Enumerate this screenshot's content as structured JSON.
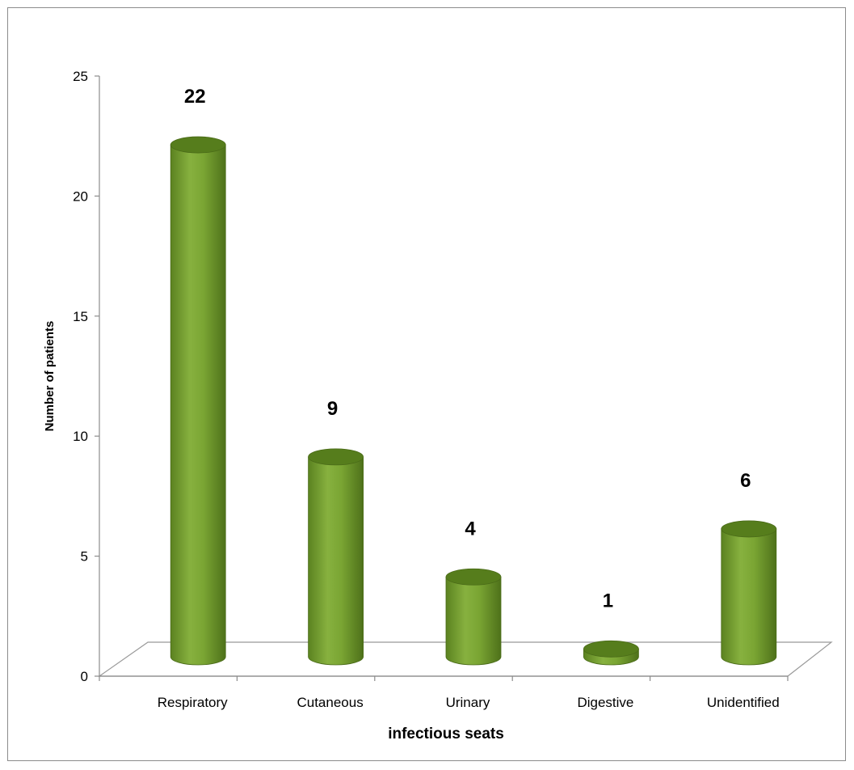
{
  "chart_data": {
    "type": "bar",
    "style": "3d-cylinder",
    "categories": [
      "Respiratory",
      "Cutaneous",
      "Urinary",
      "Digestive",
      "Unidentified"
    ],
    "values": [
      22,
      9,
      4,
      1,
      6
    ],
    "data_labels": [
      "22",
      "9",
      "4",
      "1",
      "6"
    ],
    "xlabel": "infectious seats",
    "ylabel": "Number of patients",
    "ylim": [
      0,
      25
    ],
    "yticks": [
      "0",
      "5",
      "10",
      "15",
      "20",
      "25"
    ],
    "grid": false,
    "legend": "none",
    "bar_color": "#6f9a2c",
    "bar_top_color": "#567d1c"
  }
}
